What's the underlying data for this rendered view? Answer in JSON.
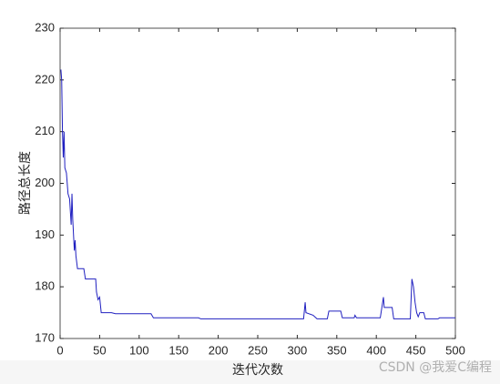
{
  "chart_data": {
    "type": "line",
    "xlabel": "迭代次数",
    "ylabel": "路径总长度",
    "watermark": "CSDN @我爱C编程",
    "xlim": [
      0,
      500
    ],
    "ylim": [
      170,
      230
    ],
    "xticks": [
      0,
      50,
      100,
      150,
      200,
      250,
      300,
      350,
      400,
      450,
      500
    ],
    "yticks": [
      170,
      180,
      190,
      200,
      210,
      220,
      230
    ],
    "grid": false,
    "x": [
      1,
      2,
      3,
      4,
      5,
      6,
      8,
      10,
      12,
      14,
      15,
      16,
      18,
      19,
      20,
      22,
      30,
      32,
      45,
      46,
      48,
      50,
      52,
      65,
      70,
      115,
      118,
      175,
      178,
      308,
      310,
      311,
      320,
      325,
      338,
      340,
      355,
      357,
      372,
      373,
      375,
      405,
      407,
      409,
      410,
      420,
      422,
      443,
      445,
      447,
      449,
      451,
      453,
      455,
      460,
      462,
      478,
      480,
      500
    ],
    "series": [
      {
        "color": "#2020c0",
        "values": [
          222,
          220,
          210,
          205,
          210,
          203,
          202,
          198,
          197,
          192,
          198,
          193,
          187,
          189,
          186,
          183.5,
          183.5,
          181.5,
          181.5,
          179,
          177.5,
          178,
          175,
          175,
          174.8,
          174.8,
          174,
          174,
          173.8,
          173.8,
          177,
          175,
          174.5,
          173.8,
          173.8,
          175.3,
          175.3,
          174,
          174,
          174.5,
          174,
          174,
          176,
          178,
          176,
          176,
          173.8,
          173.8,
          181.5,
          180,
          177,
          175,
          174.2,
          175,
          175,
          173.8,
          173.8,
          174,
          174
        ]
      }
    ]
  }
}
